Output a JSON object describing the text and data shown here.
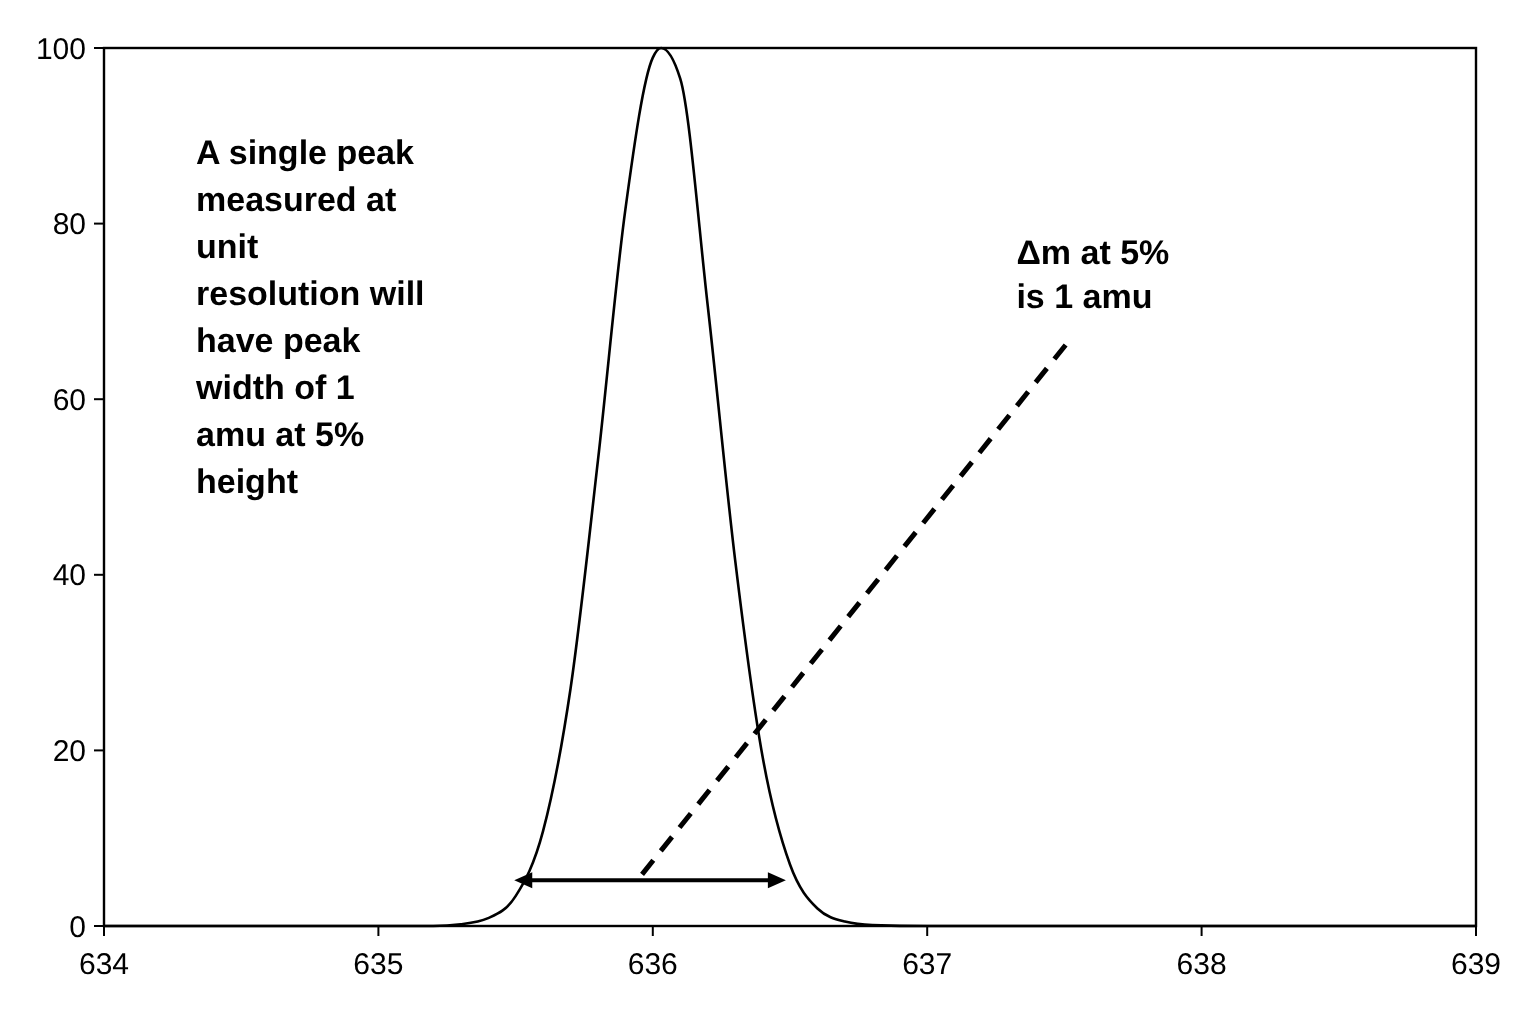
{
  "chart_data": {
    "type": "line",
    "x": [
      634,
      635,
      635.2,
      635.3,
      635.4,
      635.5,
      635.6,
      635.7,
      635.8,
      635.9,
      636,
      636.03,
      636.1,
      636.2,
      636.3,
      636.4,
      636.5,
      636.6,
      636.7,
      636.8,
      637,
      639
    ],
    "series": [
      {
        "color": "#000000",
        "values": [
          0,
          0,
          0,
          0.2,
          0.9,
          3.4,
          10.8,
          27,
          53,
          81.6,
          98.9,
          100,
          96.5,
          70.7,
          41.7,
          19.3,
          7,
          2,
          0.5,
          0.1,
          0,
          0
        ]
      }
    ],
    "xlim": [
      634,
      639
    ],
    "xticks": [
      634,
      635,
      636,
      637,
      638,
      639
    ],
    "ylim": [
      0,
      100
    ],
    "yticks": [
      0,
      20,
      40,
      60,
      80,
      100
    ],
    "grid": false,
    "marker": "none",
    "line_style": "solid",
    "annotations": [
      "A single peak\nmeasured at\nunit\nresolution will\nhave peak\nwidth of 1\namu at 5%\nheight",
      "Δm at 5%\nis 1 amu"
    ]
  }
}
